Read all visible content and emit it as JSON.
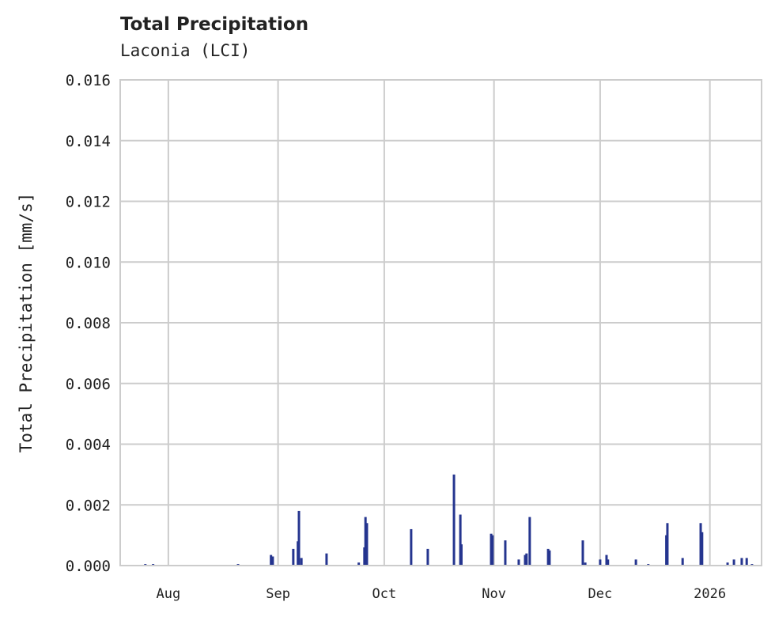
{
  "chart_data": {
    "type": "bar",
    "title": "Total Precipitation",
    "subtitle": "Laconia (LCI)",
    "xlabel": "",
    "ylabel": "Total Precipitation [mm/s]",
    "x_units": "days since 2025-08-01",
    "xlim": [
      -13.6,
      167.6
    ],
    "ylim": [
      0,
      0.016
    ],
    "yticks": [
      0,
      0.002,
      0.004,
      0.006,
      0.008,
      0.01,
      0.012,
      0.014,
      0.016
    ],
    "ytick_labels": [
      "0.000",
      "0.002",
      "0.004",
      "0.006",
      "0.008",
      "0.010",
      "0.012",
      "0.014",
      "0.016"
    ],
    "xticks": [
      0,
      31,
      61,
      92,
      122,
      153
    ],
    "xtick_labels": [
      "Aug",
      "Sep",
      "Oct",
      "Nov",
      "Dec",
      "2026"
    ],
    "grid": true,
    "series": [
      {
        "name": "Total Precipitation",
        "color": "#25358f",
        "points": [
          [
            -6.5,
            5e-05
          ],
          [
            -4.3,
            5e-05
          ],
          [
            19.7,
            5e-05
          ],
          [
            29.0,
            0.00035
          ],
          [
            29.5,
            0.0003
          ],
          [
            35.3,
            0.00055
          ],
          [
            36.6,
            0.0008
          ],
          [
            36.9,
            0.0018
          ],
          [
            37.6,
            0.00025
          ],
          [
            44.7,
            0.0004
          ],
          [
            53.8,
            0.0001
          ],
          [
            55.4,
            0.0006
          ],
          [
            55.7,
            0.0016
          ],
          [
            56.1,
            0.0014
          ],
          [
            68.6,
            0.0012
          ],
          [
            73.3,
            0.00055
          ],
          [
            80.7,
            0.003
          ],
          [
            82.5,
            0.00168
          ],
          [
            82.8,
            0.0007
          ],
          [
            91.2,
            0.00105
          ],
          [
            91.6,
            0.001
          ],
          [
            95.2,
            0.00083
          ],
          [
            99.0,
            0.0002
          ],
          [
            100.8,
            0.00035
          ],
          [
            101.2,
            0.0004
          ],
          [
            102.1,
            0.0016
          ],
          [
            107.3,
            0.00055
          ],
          [
            107.7,
            0.0005
          ],
          [
            117.1,
            0.00083
          ],
          [
            117.8,
            0.0001
          ],
          [
            122.0,
            0.0002
          ],
          [
            123.8,
            0.00035
          ],
          [
            124.2,
            0.0002
          ],
          [
            132.1,
            0.0002
          ],
          [
            135.6,
            5e-05
          ],
          [
            140.7,
            0.001
          ],
          [
            141.0,
            0.0014
          ],
          [
            145.3,
            0.00025
          ],
          [
            150.4,
            0.0014
          ],
          [
            150.8,
            0.0011
          ],
          [
            158.0,
            0.0001
          ],
          [
            159.8,
            0.0002
          ],
          [
            162.0,
            0.00025
          ],
          [
            163.4,
            0.00025
          ],
          [
            164.9,
            5e-05
          ]
        ]
      }
    ]
  }
}
